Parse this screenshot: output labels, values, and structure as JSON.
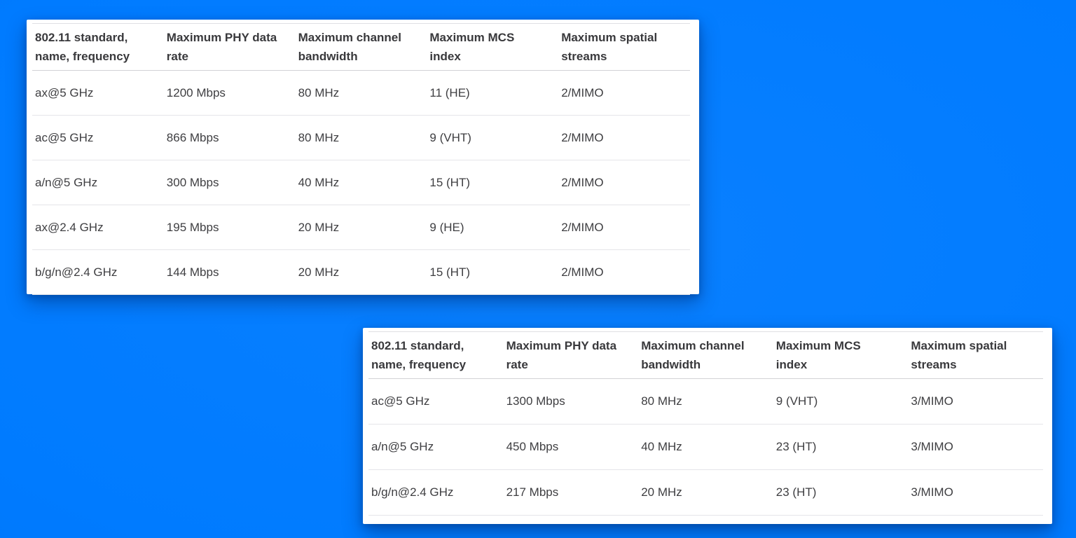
{
  "page": {
    "background_color": "#007bff",
    "panel_color": "#ffffff",
    "header_text_color": "#39393c",
    "body_text_color": "#3e3e41",
    "divider_color": "#e5e5e9",
    "header_divider_color": "#d2d2d6"
  },
  "tables": [
    {
      "name": "wifi-specs-2-stream",
      "headers": [
        "802.11 standard,\nname, frequency",
        "Maximum PHY data\nrate",
        "Maximum channel\nbandwidth",
        "Maximum MCS\nindex",
        "Maximum spatial\nstreams"
      ],
      "rows": [
        [
          "ax@5 GHz",
          "1200 Mbps",
          "80 MHz",
          "11 (HE)",
          "2/MIMO"
        ],
        [
          "ac@5 GHz",
          "866 Mbps",
          "80 MHz",
          "9 (VHT)",
          "2/MIMO"
        ],
        [
          "a/n@5 GHz",
          "300 Mbps",
          "40 MHz",
          "15 (HT)",
          "2/MIMO"
        ],
        [
          "ax@2.4 GHz",
          "195 Mbps",
          "20 MHz",
          "9 (HE)",
          "2/MIMO"
        ],
        [
          "b/g/n@2.4 GHz",
          "144 Mbps",
          "20 MHz",
          "15 (HT)",
          "2/MIMO"
        ]
      ]
    },
    {
      "name": "wifi-specs-3-stream",
      "headers": [
        "802.11 standard,\nname, frequency",
        "Maximum PHY data\nrate",
        "Maximum channel\nbandwidth",
        "Maximum MCS\nindex",
        "Maximum spatial\nstreams"
      ],
      "rows": [
        [
          "ac@5 GHz",
          "1300 Mbps",
          "80 MHz",
          "9 (VHT)",
          "3/MIMO"
        ],
        [
          "a/n@5 GHz",
          "450 Mbps",
          "40 MHz",
          "23 (HT)",
          "3/MIMO"
        ],
        [
          "b/g/n@2.4 GHz",
          "217 Mbps",
          "20 MHz",
          "23 (HT)",
          "3/MIMO"
        ]
      ]
    }
  ]
}
